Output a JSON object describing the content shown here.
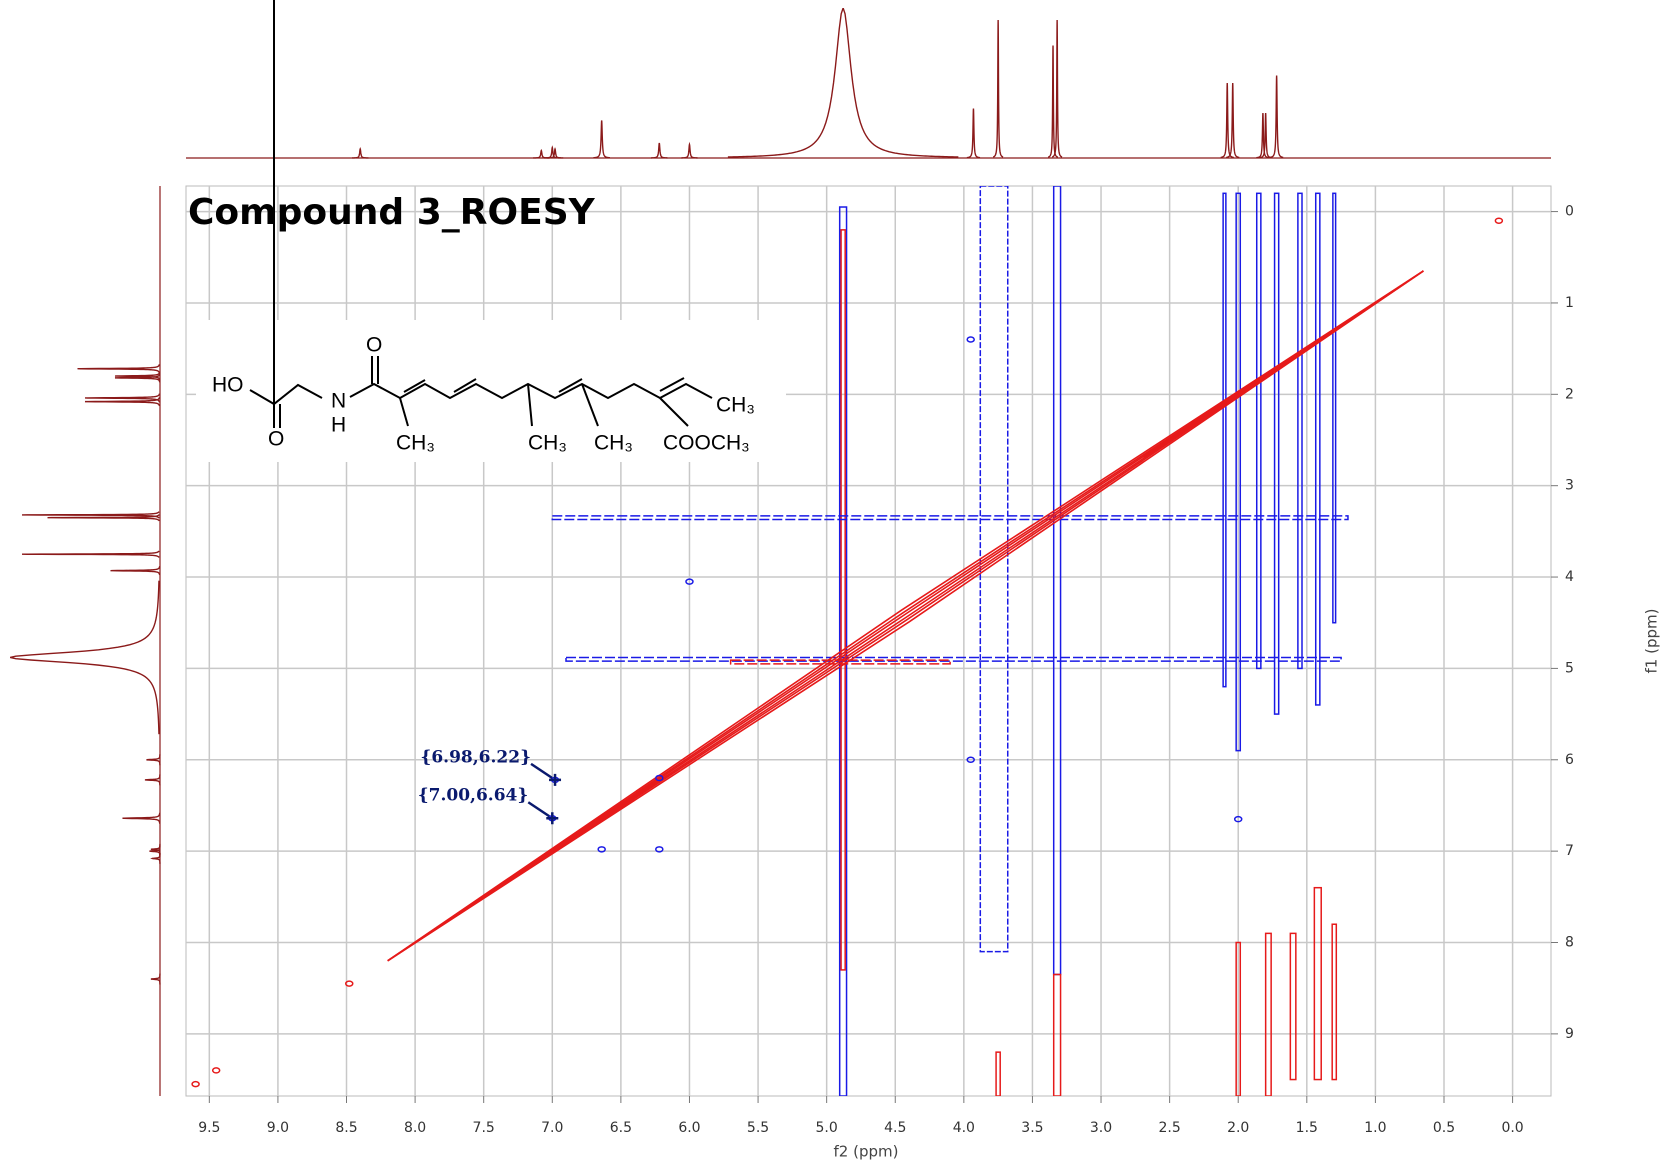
{
  "chart_data": {
    "type": "contour",
    "title": "Compound 3_ROESY",
    "xlabel": "f2 (ppm)",
    "ylabel": "f1 (ppm)",
    "xlim": [
      9.67,
      -0.28
    ],
    "ylim": [
      -0.28,
      9.68
    ],
    "xticks": [
      9.5,
      {
        "value": 9,
        "label": "9.0"
      },
      8.5,
      {
        "value": 8,
        "label": "8.0"
      },
      7.5,
      {
        "value": 7,
        "label": "7.0"
      },
      6.5,
      {
        "value": 6,
        "label": "6.0"
      },
      5.5,
      {
        "value": 5,
        "label": "5.0"
      },
      4.5,
      {
        "value": 4,
        "label": "4.0"
      },
      3.5,
      {
        "value": 3,
        "label": "3.0"
      },
      2.5,
      {
        "value": 2,
        "label": "2.0"
      },
      1.5,
      {
        "value": 1,
        "label": "1.0"
      },
      0.5,
      {
        "value": 0,
        "label": "0.0"
      }
    ],
    "yticks": [
      0,
      1,
      2,
      3,
      4,
      5,
      6,
      7,
      8,
      9
    ],
    "grid": true,
    "positive_color": "#1a1ae6",
    "negative_color": "#e61a1a",
    "projection_color": "#8b1a1a",
    "projection_peaks": [
      {
        "x": 8.4,
        "height": 0.06,
        "width": 0.005
      },
      {
        "x": 7.08,
        "height": 0.05,
        "width": 0.005
      },
      {
        "x": 7.0,
        "height": 0.07,
        "width": 0.005
      },
      {
        "x": 6.98,
        "height": 0.06,
        "width": 0.005
      },
      {
        "x": 6.64,
        "height": 0.25,
        "width": 0.005
      },
      {
        "x": 6.22,
        "height": 0.1,
        "width": 0.005
      },
      {
        "x": 6.0,
        "height": 0.09,
        "width": 0.005
      },
      {
        "x": 4.88,
        "height": 1.0,
        "width": 0.07
      },
      {
        "x": 3.93,
        "height": 0.33,
        "width": 0.004
      },
      {
        "x": 3.75,
        "height": 0.92,
        "width": 0.003
      },
      {
        "x": 3.35,
        "height": 0.75,
        "width": 0.003
      },
      {
        "x": 3.32,
        "height": 0.92,
        "width": 0.003
      },
      {
        "x": 2.08,
        "height": 0.5,
        "width": 0.004
      },
      {
        "x": 2.04,
        "height": 0.5,
        "width": 0.004
      },
      {
        "x": 1.82,
        "height": 0.3,
        "width": 0.004
      },
      {
        "x": 1.8,
        "height": 0.3,
        "width": 0.004
      },
      {
        "x": 1.72,
        "height": 0.55,
        "width": 0.004
      }
    ],
    "vertical_stripes": [
      {
        "x": 4.88,
        "width": 0.05,
        "y": [
          -0.05,
          9.68
        ],
        "color": "#1a1ae6"
      },
      {
        "x": 4.88,
        "width": 0.03,
        "y": [
          0.2,
          8.3
        ],
        "color": "#e61a1a"
      },
      {
        "x": 3.78,
        "width": 0.2,
        "y": [
          -0.28,
          8.1
        ],
        "color": "#1a1ae6"
      },
      {
        "x": 3.32,
        "width": 0.05,
        "y": [
          -0.28,
          8.35
        ],
        "color": "#1a1ae6"
      },
      {
        "x": 3.32,
        "width": 0.05,
        "y": [
          8.35,
          9.68
        ],
        "color": "#e61a1a"
      },
      {
        "x": 2.1,
        "width": 0.02,
        "y": [
          -0.2,
          5.2
        ],
        "color": "#1a1ae6"
      },
      {
        "x": 2.0,
        "width": 0.03,
        "y": [
          -0.2,
          5.9
        ],
        "color": "#1a1ae6"
      },
      {
        "x": 1.85,
        "width": 0.03,
        "y": [
          -0.2,
          5.0
        ],
        "color": "#1a1ae6"
      },
      {
        "x": 1.72,
        "width": 0.03,
        "y": [
          -0.2,
          5.5
        ],
        "color": "#1a1ae6"
      },
      {
        "x": 1.55,
        "width": 0.03,
        "y": [
          -0.2,
          5.0
        ],
        "color": "#1a1ae6"
      },
      {
        "x": 1.42,
        "width": 0.03,
        "y": [
          -0.2,
          5.4
        ],
        "color": "#1a1ae6"
      },
      {
        "x": 1.3,
        "width": 0.02,
        "y": [
          -0.2,
          4.5
        ],
        "color": "#1a1ae6"
      },
      {
        "x": 2.0,
        "width": 0.03,
        "y": [
          8.0,
          9.68
        ],
        "color": "#e61a1a"
      },
      {
        "x": 1.78,
        "width": 0.04,
        "y": [
          7.9,
          9.68
        ],
        "color": "#e61a1a"
      },
      {
        "x": 1.6,
        "width": 0.04,
        "y": [
          7.9,
          9.5
        ],
        "color": "#e61a1a"
      },
      {
        "x": 1.42,
        "width": 0.05,
        "y": [
          7.4,
          9.5
        ],
        "color": "#e61a1a"
      },
      {
        "x": 1.3,
        "width": 0.03,
        "y": [
          7.8,
          9.5
        ],
        "color": "#e61a1a"
      },
      {
        "x": 3.75,
        "width": 0.03,
        "y": [
          9.2,
          9.68
        ],
        "color": "#e61a1a"
      }
    ],
    "horizontal_stripes": [
      {
        "y": 4.9,
        "x": [
          6.9,
          1.25
        ],
        "height": 0.04,
        "color": "#1a1ae6"
      },
      {
        "y": 3.35,
        "x": [
          7.0,
          1.2
        ],
        "height": 0.04,
        "color": "#1a1ae6"
      },
      {
        "y": 4.93,
        "x": [
          5.7,
          4.1
        ],
        "height": 0.04,
        "color": "#e61a1a"
      }
    ],
    "diagonal": [
      8.2,
      0.65
    ],
    "cross_peaks": [
      {
        "x": 6.98,
        "y": 6.22,
        "color": "#1a1ae6"
      },
      {
        "x": 7.0,
        "y": 6.64,
        "color": "#1a1ae6"
      },
      {
        "x": 6.22,
        "y": 6.2,
        "color": "#1a1ae6"
      },
      {
        "x": 6.0,
        "y": 4.05,
        "color": "#1a1ae6"
      },
      {
        "x": 6.22,
        "y": 6.98,
        "color": "#1a1ae6"
      },
      {
        "x": 6.64,
        "y": 6.98,
        "color": "#1a1ae6"
      },
      {
        "x": 3.95,
        "y": 6.0,
        "color": "#1a1ae6"
      },
      {
        "x": 3.95,
        "y": 1.4,
        "color": "#1a1ae6"
      },
      {
        "x": 2.0,
        "y": 6.65,
        "color": "#1a1ae6"
      },
      {
        "x": 8.48,
        "y": 8.45,
        "color": "#e61a1a"
      },
      {
        "x": 9.45,
        "y": 9.4,
        "color": "#e61a1a"
      },
      {
        "x": 9.6,
        "y": 9.55,
        "color": "#e61a1a"
      },
      {
        "x": 0.1,
        "y": 0.1,
        "color": "#e61a1a"
      }
    ],
    "annotations": [
      {
        "text": "{6.98,6.22}",
        "x": 6.98,
        "y": 6.22
      },
      {
        "text": "{7.00,6.64}",
        "x": 7.0,
        "y": 6.64
      }
    ]
  },
  "structure": {
    "labels": [
      "HO",
      "O",
      "N",
      "H",
      "O",
      "CH₃",
      "CH₃",
      "CH₃",
      "CH₃",
      "COOCH₃"
    ]
  }
}
